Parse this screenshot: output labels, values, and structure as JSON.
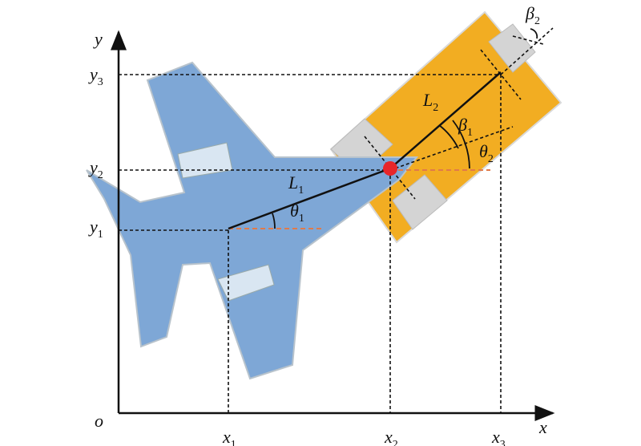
{
  "axes": {
    "x": "x",
    "y": "y",
    "origin": "o"
  },
  "labels": {
    "x1": {
      "base": "x",
      "sub": "1"
    },
    "x2": {
      "base": "x",
      "sub": "2"
    },
    "x3": {
      "base": "x",
      "sub": "3"
    },
    "y1": {
      "base": "y",
      "sub": "1"
    },
    "y2": {
      "base": "y",
      "sub": "2"
    },
    "y3": {
      "base": "y",
      "sub": "3"
    },
    "L1": {
      "base": "L",
      "sub": "1"
    },
    "L2": {
      "base": "L",
      "sub": "2"
    },
    "theta1": {
      "base": "θ",
      "sub": "1"
    },
    "theta2": {
      "base": "θ",
      "sub": "2"
    },
    "beta1": {
      "base": "β",
      "sub": "1"
    },
    "beta2": {
      "base": "β",
      "sub": "2"
    }
  }
}
